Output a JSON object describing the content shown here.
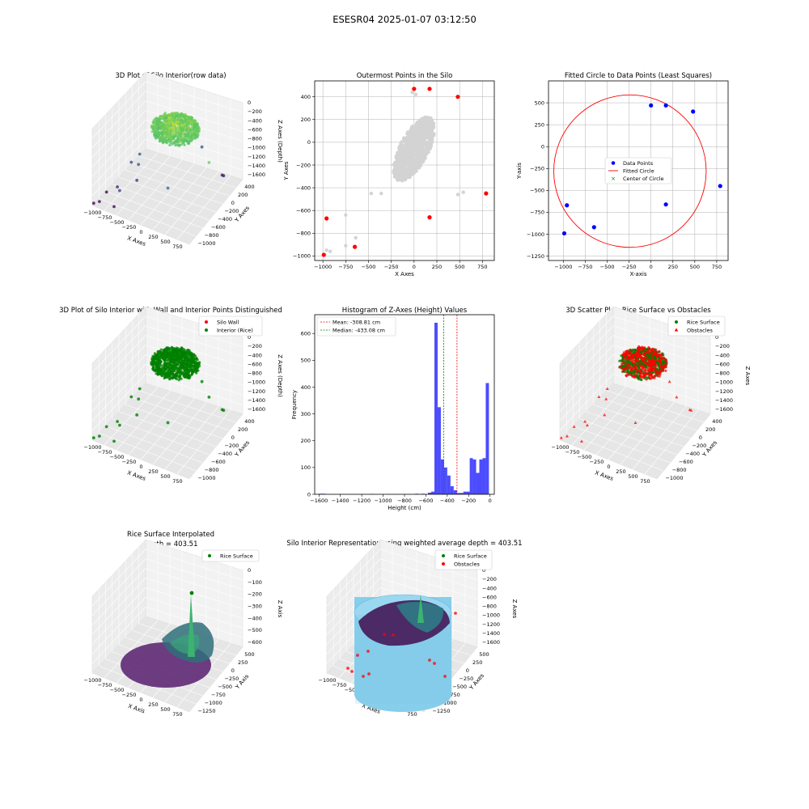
{
  "figure_title": "ESESR04 2025-01-07 03:12:50",
  "chart_data": [
    {
      "id": "p1",
      "type": "scatter3d",
      "title": "3D Plot of Silo Interior(row data)",
      "xlabel": "X Axes",
      "ylabel": "Y Axes",
      "zlabel": "Z Axes (Depth)",
      "xticks": [
        "−1000",
        "−750",
        "−500",
        "−250",
        "0",
        "250",
        "500",
        "750"
      ],
      "yticks": [
        "400",
        "200",
        "0",
        "−200",
        "−400",
        "−600",
        "−800",
        "−1000"
      ],
      "zticks": [
        "0",
        "−200",
        "−400",
        "−600",
        "−800",
        "−1000",
        "−1200",
        "−1400",
        "−1600"
      ],
      "xlim": [
        -1000,
        800
      ],
      "ylim": [
        -1000,
        450
      ],
      "zlim": [
        -1650,
        0
      ],
      "colormap": "viridis",
      "cluster": {
        "cx": -60,
        "cy": -120,
        "rx": 390,
        "ry": 330,
        "z_min": -520,
        "z_max": -40
      },
      "outliers": [
        [
          -980,
          -990,
          -1600
        ],
        [
          -960,
          -670,
          -1620
        ],
        [
          -650,
          -920,
          -1580
        ],
        [
          -780,
          -640,
          -1450
        ],
        [
          -900,
          -950,
          -1560
        ],
        [
          170,
          -660,
          -1020
        ],
        [
          480,
          400,
          -1500
        ],
        [
          440,
          420,
          -1520
        ],
        [
          -540,
          -460,
          -1350
        ],
        [
          -600,
          -840,
          -1280
        ],
        [
          30,
          470,
          -1150
        ],
        [
          -620,
          -300,
          -1180
        ],
        [
          -780,
          -260,
          -1240
        ],
        [
          -700,
          -150,
          -1120
        ],
        [
          790,
          -450,
          -360
        ]
      ]
    },
    {
      "id": "p2",
      "type": "scatter",
      "title": "Outermost Points in the Silo",
      "xlabel": "X Axes",
      "ylabel": "Y Axes",
      "xlim": [
        -1090,
        880
      ],
      "ylim": [
        -1040,
        540
      ],
      "xticks": [
        -1000,
        -750,
        -500,
        -250,
        0,
        250,
        500,
        750
      ],
      "yticks": [
        -1000,
        -800,
        -600,
        -400,
        -200,
        0,
        200,
        400
      ],
      "grid": true,
      "cloud_color": "#d3d3d3",
      "cloud": {
        "cx": 0,
        "cy": -60,
        "rx": 330,
        "ry": 270
      },
      "gray_outliers": [
        [
          -360,
          -450
        ],
        [
          -470,
          -450
        ],
        [
          -750,
          -640
        ],
        [
          -750,
          -910
        ],
        [
          -640,
          -840
        ],
        [
          -960,
          -950
        ],
        [
          480,
          -460
        ],
        [
          540,
          -440
        ],
        [
          20,
          420
        ],
        [
          -20,
          440
        ],
        [
          -920,
          -960
        ]
      ],
      "outermost_points": [
        [
          0,
          470
        ],
        [
          170,
          470
        ],
        [
          480,
          400
        ],
        [
          790,
          -450
        ],
        [
          170,
          -660
        ],
        [
          -960,
          -670
        ],
        [
          -650,
          -920
        ],
        [
          -990,
          -990
        ]
      ],
      "outermost_color": "#ff0000"
    },
    {
      "id": "p3",
      "type": "scatter",
      "title": "Fitted Circle to Data Points (Least Squares)",
      "xlabel": "X-axis",
      "ylabel": "Y-axis",
      "xlim": [
        -1170,
        880
      ],
      "ylim": [
        -1300,
        750
      ],
      "xticks": [
        -1000,
        -750,
        -500,
        -250,
        0,
        250,
        500,
        750
      ],
      "yticks": [
        -1250,
        -1000,
        -750,
        -500,
        -250,
        0,
        250,
        500
      ],
      "grid": true,
      "data_points": [
        [
          0,
          470
        ],
        [
          170,
          470
        ],
        [
          480,
          400
        ],
        [
          790,
          -450
        ],
        [
          170,
          -660
        ],
        [
          -960,
          -670
        ],
        [
          -650,
          -920
        ],
        [
          -990,
          -990
        ]
      ],
      "circle": {
        "cx": -240,
        "cy": -280,
        "r": 870
      },
      "center": [
        -240,
        -280
      ],
      "legend": [
        "Data Points",
        "Fitted Circle",
        "Center of Circle"
      ],
      "legend_position": "center",
      "colors": {
        "points": "#0000ff",
        "circle": "#ff0000",
        "center": "#008000"
      }
    },
    {
      "id": "p4",
      "type": "scatter3d",
      "title": "3D Plot of Silo Interior with Wall and Interior Points Distinguished",
      "xlabel": "X Axes",
      "ylabel": "Y Axes",
      "zlabel": "Z Axes (Depth)",
      "xticks": [
        "−1000",
        "−750",
        "−500",
        "−250",
        "0",
        "250",
        "500",
        "750"
      ],
      "yticks": [
        "400",
        "200",
        "0",
        "−200",
        "−400",
        "−600",
        "−800",
        "−1000"
      ],
      "zticks": [
        "0",
        "−200",
        "−400",
        "−600",
        "−800",
        "−1000",
        "−1200",
        "−1400",
        "−1600"
      ],
      "legend": [
        "Silo Wall",
        "Interior (Rice)"
      ],
      "legend_position": "upper right",
      "colors": {
        "wall": "#ff0000",
        "interior": "#008000"
      }
    },
    {
      "id": "p5",
      "type": "bar",
      "title": "Histogram of Z-Axes (Height) Values",
      "xlabel": "Height (cm)",
      "ylabel": "Frequency",
      "xlim": [
        -1640,
        40
      ],
      "ylim": [
        0,
        670
      ],
      "xticks": [
        -1600,
        -1400,
        -1200,
        -1000,
        -800,
        -600,
        -400,
        -200,
        0
      ],
      "yticks": [
        0,
        100,
        200,
        300,
        400,
        500,
        600
      ],
      "bin_width": 30,
      "bins": [
        [
          -1600,
          2
        ],
        [
          -1570,
          2
        ],
        [
          -1120,
          1
        ],
        [
          -700,
          2
        ],
        [
          -640,
          2
        ],
        [
          -580,
          6
        ],
        [
          -550,
          10
        ],
        [
          -520,
          640
        ],
        [
          -490,
          325
        ],
        [
          -460,
          130
        ],
        [
          -430,
          100
        ],
        [
          -400,
          70
        ],
        [
          -370,
          30
        ],
        [
          -340,
          15
        ],
        [
          -310,
          5
        ],
        [
          -280,
          5
        ],
        [
          -250,
          10
        ],
        [
          -220,
          10
        ],
        [
          -190,
          135
        ],
        [
          -160,
          130
        ],
        [
          -130,
          80
        ],
        [
          -100,
          130
        ],
        [
          -70,
          135
        ],
        [
          -40,
          415
        ]
      ],
      "bar_color": "#0000ff",
      "mean": -308.81,
      "median": -433.08,
      "legend": [
        "Mean: -308.81 cm",
        "Median: -433.08 cm"
      ],
      "legend_position": "upper left",
      "colors": {
        "mean": "#ff0000",
        "median": "#008000"
      }
    },
    {
      "id": "p6",
      "type": "scatter3d",
      "title": "3D Scatter Plot: Rice Surface vs Obstacles",
      "xlabel": "X Axes",
      "ylabel": "Y Axes",
      "zlabel": "Z Axes",
      "xticks": [
        "−1000",
        "−750",
        "−500",
        "−250",
        "0",
        "250",
        "500",
        "750"
      ],
      "yticks": [
        "400",
        "200",
        "0",
        "−200",
        "−400",
        "−600",
        "−800",
        "−1000"
      ],
      "zticks": [
        "0",
        "−200",
        "−400",
        "−600",
        "−800",
        "−1000",
        "−1200",
        "−1400",
        "−1600"
      ],
      "legend": [
        "Rice Surface",
        "Obstacles"
      ],
      "legend_position": "upper right",
      "colors": {
        "surface": "#008000",
        "obstacles": "#ff0000"
      }
    },
    {
      "id": "p7",
      "type": "surface3d",
      "title": "Rice Surface Interpolated",
      "subtitle": "depth = 403.51",
      "xlabel": "X Axis",
      "ylabel": "Y Axis",
      "zlabel": "Z Axis",
      "xticks": [
        "−1000",
        "−750",
        "−500",
        "−250",
        "0",
        "250",
        "500",
        "750"
      ],
      "yticks": [
        "500",
        "250",
        "0",
        "−250",
        "−500",
        "−750",
        "−1000",
        "−1250"
      ],
      "zticks": [
        "0",
        "−100",
        "−200",
        "−300",
        "−400",
        "−500",
        "−600"
      ],
      "legend": [
        "Rice Surface"
      ],
      "legend_position": "upper right",
      "colors": {
        "surface": "#008000"
      }
    },
    {
      "id": "p8",
      "type": "surface3d",
      "title": "Silo Interior Representation using weighted average depth = 403.51",
      "xlabel": "X Axes",
      "ylabel": "Y Axes",
      "zlabel": "Z Axes",
      "xticks": [
        "−1000",
        "−750",
        "−500",
        "−250",
        "0",
        "250",
        "500",
        "750"
      ],
      "yticks": [
        "500",
        "250",
        "0",
        "−250",
        "−500",
        "−750",
        "−1000",
        "−1250"
      ],
      "zticks": [
        "0",
        "−200",
        "−400",
        "−600",
        "−800",
        "−1000",
        "−1200",
        "−1400",
        "−1600"
      ],
      "legend": [
        "Rice Surface",
        "Obstacles"
      ],
      "legend_position": "upper right",
      "colors": {
        "surface": "#008000",
        "obstacles": "#ff0000",
        "wall": "#87ceeb"
      }
    }
  ]
}
